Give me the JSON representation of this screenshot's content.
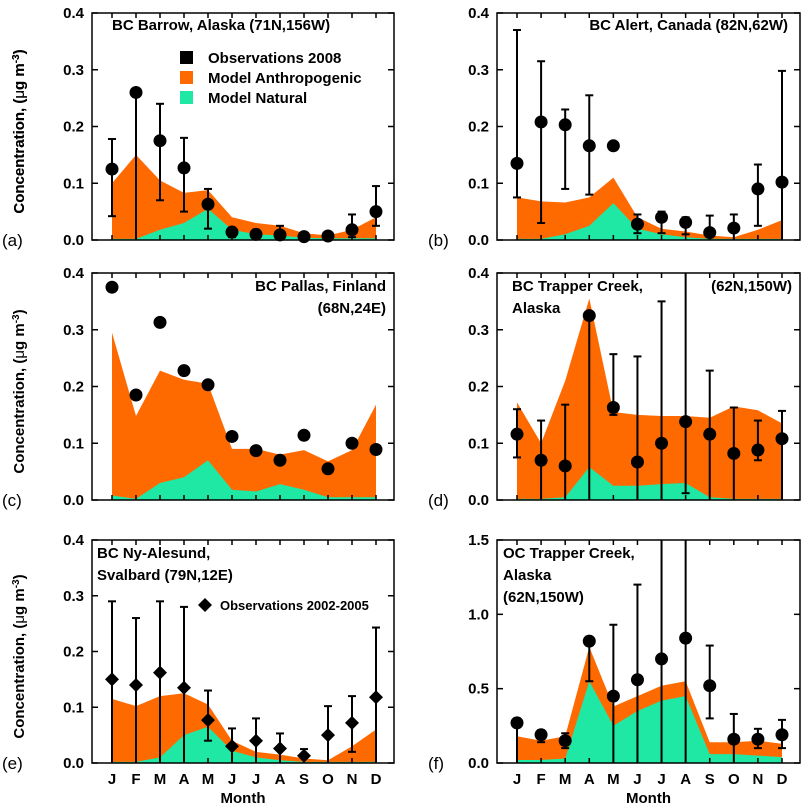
{
  "figure": {
    "ylabel_prefix": "Concentration, (",
    "ylabel_mu": "μ",
    "ylabel_unit": "g m",
    "ylabel_exp": "-3",
    "ylabel_close": ")",
    "xlabel": "Month",
    "legend_obs": "Observations 2008",
    "legend_anthro": "Model Anthropogenic",
    "legend_natural": "Model Natural",
    "legend_obs_multi": "Observations 2002-2005"
  },
  "colors": {
    "anthropogenic": "#ff6a00",
    "natural": "#1ee8a4",
    "observations": "#000000",
    "axes": "#000000"
  },
  "chart_data": [
    {
      "type": "area",
      "panel": "(a)",
      "title_lines": [
        "BC Barrow, Alaska (71N,156W)"
      ],
      "categories": [
        "J",
        "F",
        "M",
        "A",
        "M",
        "J",
        "J",
        "A",
        "S",
        "O",
        "N",
        "D"
      ],
      "ylim": [
        0,
        0.4
      ],
      "yticks": [
        "0.0",
        "0.1",
        "0.2",
        "0.3",
        "0.4"
      ],
      "series": [
        {
          "name": "Model Anthropogenic",
          "values": [
            0.1,
            0.15,
            0.105,
            0.083,
            0.088,
            0.04,
            0.03,
            0.025,
            0.012,
            0.008,
            0.018,
            0.04
          ]
        },
        {
          "name": "Model Natural",
          "values": [
            0.002,
            0.002,
            0.018,
            0.03,
            0.055,
            0.018,
            0.01,
            0.008,
            0.004,
            0.003,
            0.003,
            0.003
          ]
        },
        {
          "name": "Observations 2008",
          "marker": "circle",
          "values": [
            0.125,
            0.26,
            0.175,
            0.127,
            0.063,
            0.014,
            0.01,
            0.009,
            0.006,
            0.007,
            0.018,
            0.05
          ],
          "err_low": [
            0.042,
            0.0,
            0.07,
            0.05,
            0.02,
            0.005,
            0.003,
            0.0,
            0.003,
            0.003,
            0.005,
            0.025
          ],
          "err_high": [
            0.178,
            0.255,
            0.24,
            0.18,
            0.09,
            0.02,
            0.018,
            0.025,
            0.012,
            0.012,
            0.045,
            0.095
          ]
        }
      ]
    },
    {
      "type": "area",
      "panel": "(b)",
      "title_lines": [
        "BC Alert, Canada (82N,62W)"
      ],
      "categories": [
        "J",
        "F",
        "M",
        "A",
        "M",
        "J",
        "J",
        "A",
        "S",
        "O",
        "N",
        "D"
      ],
      "ylim": [
        0,
        0.4
      ],
      "yticks": [
        "0.0",
        "0.1",
        "0.2",
        "0.3",
        "0.4"
      ],
      "series": [
        {
          "name": "Model Anthropogenic",
          "values": [
            0.075,
            0.068,
            0.066,
            0.075,
            0.11,
            0.04,
            0.02,
            0.015,
            0.008,
            0.005,
            0.018,
            0.035
          ]
        },
        {
          "name": "Model Natural",
          "values": [
            0.002,
            0.002,
            0.01,
            0.025,
            0.065,
            0.02,
            0.01,
            0.005,
            0.002,
            0.002,
            0.002,
            0.002
          ]
        },
        {
          "name": "Observations 2008",
          "marker": "circle",
          "values": [
            0.135,
            0.208,
            0.203,
            0.166,
            0.166,
            0.028,
            0.04,
            0.031,
            0.013,
            0.021,
            0.09,
            0.102
          ],
          "err_low": [
            0.075,
            0.03,
            0.09,
            0.08,
            0.0,
            0.012,
            0.012,
            0.01,
            0.0,
            0.0,
            0.025,
            0.0
          ],
          "err_high": [
            0.37,
            0.315,
            0.23,
            0.255,
            0.0,
            0.045,
            0.05,
            0.04,
            0.043,
            0.045,
            0.133,
            0.298
          ]
        }
      ]
    },
    {
      "type": "area",
      "panel": "(c)",
      "title_lines": [
        "BC Pallas, Finland",
        "(68N,24E)"
      ],
      "categories": [
        "J",
        "F",
        "M",
        "A",
        "M",
        "J",
        "J",
        "A",
        "S",
        "O",
        "N",
        "D"
      ],
      "ylim": [
        0,
        0.4
      ],
      "yticks": [
        "0.0",
        "0.1",
        "0.2",
        "0.3",
        "0.4"
      ],
      "series": [
        {
          "name": "Model Anthropogenic",
          "values": [
            0.295,
            0.148,
            0.228,
            0.212,
            0.205,
            0.09,
            0.09,
            0.08,
            0.088,
            0.068,
            0.088,
            0.168
          ]
        },
        {
          "name": "Model Natural",
          "values": [
            0.008,
            0.002,
            0.03,
            0.04,
            0.07,
            0.018,
            0.015,
            0.028,
            0.018,
            0.005,
            0.005,
            0.005
          ]
        },
        {
          "name": "Observations 2008",
          "marker": "circle",
          "values": [
            0.375,
            0.185,
            0.313,
            0.228,
            0.203,
            0.112,
            0.087,
            0.07,
            0.114,
            0.055,
            0.1,
            0.089
          ]
        }
      ]
    },
    {
      "type": "area",
      "panel": "(d)",
      "title_lines": [
        "BC Trapper Creek,",
        "Alaska",
        "(62N,150W)"
      ],
      "categories": [
        "J",
        "F",
        "M",
        "A",
        "M",
        "J",
        "J",
        "A",
        "S",
        "O",
        "N",
        "D"
      ],
      "ylim": [
        0,
        0.4
      ],
      "yticks": [
        "0.0",
        "0.1",
        "0.2",
        "0.3",
        "0.4"
      ],
      "series": [
        {
          "name": "Model Anthropogenic",
          "values": [
            0.172,
            0.1,
            0.21,
            0.355,
            0.155,
            0.15,
            0.148,
            0.148,
            0.145,
            0.165,
            0.158,
            0.135
          ]
        },
        {
          "name": "Model Natural",
          "values": [
            0.002,
            0.002,
            0.005,
            0.058,
            0.025,
            0.025,
            0.028,
            0.03,
            0.005,
            0.002,
            0.002,
            0.002
          ]
        },
        {
          "name": "Observations 2008",
          "marker": "circle",
          "values": [
            0.116,
            0.07,
            0.06,
            0.325,
            0.163,
            0.067,
            0.1,
            0.138,
            0.116,
            0.082,
            0.088,
            0.108
          ],
          "err_low": [
            0.075,
            0.0,
            0.0,
            0.0,
            0.15,
            0.0,
            0.0,
            0.012,
            0.0,
            0.0,
            0.07,
            0.0
          ],
          "err_high": [
            0.16,
            0.14,
            0.168,
            0.33,
            0.257,
            0.253,
            0.35,
            0.43,
            0.228,
            0.163,
            0.14,
            0.157
          ]
        }
      ]
    },
    {
      "type": "area",
      "panel": "(e)",
      "title_lines": [
        "BC Ny-Alesund,",
        "Svalbard (79N,12E)"
      ],
      "categories": [
        "J",
        "F",
        "M",
        "A",
        "M",
        "J",
        "J",
        "A",
        "S",
        "O",
        "N",
        "D"
      ],
      "ylim": [
        0,
        0.4
      ],
      "yticks": [
        "0.0",
        "0.1",
        "0.2",
        "0.3",
        "0.4"
      ],
      "series": [
        {
          "name": "Model Anthropogenic",
          "values": [
            0.115,
            0.102,
            0.12,
            0.125,
            0.105,
            0.04,
            0.02,
            0.015,
            0.008,
            0.005,
            0.03,
            0.06
          ]
        },
        {
          "name": "Model Natural",
          "values": [
            0.002,
            0.002,
            0.01,
            0.05,
            0.065,
            0.022,
            0.01,
            0.005,
            0.002,
            0.002,
            0.002,
            0.002
          ]
        },
        {
          "name": "Observations 2002-2005",
          "marker": "diamond",
          "values": [
            0.15,
            0.14,
            0.162,
            0.135,
            0.077,
            0.03,
            0.04,
            0.026,
            0.013,
            0.05,
            0.072,
            0.118
          ],
          "err_low": [
            0.0,
            0.0,
            0.0,
            0.0,
            0.04,
            0.0,
            0.0,
            0.0,
            0.0,
            0.0,
            0.02,
            0.0
          ],
          "err_high": [
            0.29,
            0.26,
            0.29,
            0.28,
            0.13,
            0.062,
            0.08,
            0.053,
            0.025,
            0.102,
            0.12,
            0.243
          ]
        }
      ]
    },
    {
      "type": "area",
      "panel": "(f)",
      "title_lines": [
        "OC Trapper Creek,",
        "Alaska",
        "(62N,150W)"
      ],
      "categories": [
        "J",
        "F",
        "M",
        "A",
        "M",
        "J",
        "J",
        "A",
        "S",
        "O",
        "N",
        "D"
      ],
      "ylim": [
        0,
        1.5
      ],
      "yticks": [
        "0.0",
        "0.5",
        "1.0",
        "1.5"
      ],
      "series": [
        {
          "name": "Model Anthropogenic",
          "values": [
            0.18,
            0.15,
            0.18,
            0.78,
            0.38,
            0.45,
            0.52,
            0.55,
            0.14,
            0.14,
            0.15,
            0.13
          ]
        },
        {
          "name": "Model Natural",
          "values": [
            0.02,
            0.02,
            0.03,
            0.55,
            0.25,
            0.35,
            0.42,
            0.45,
            0.06,
            0.06,
            0.05,
            0.04
          ]
        },
        {
          "name": "Observations 2008",
          "marker": "circle",
          "values": [
            0.27,
            0.19,
            0.15,
            0.82,
            0.45,
            0.56,
            0.7,
            0.84,
            0.52,
            0.16,
            0.16,
            0.19
          ],
          "err_low": [
            0.0,
            0.14,
            0.1,
            0.55,
            0.0,
            0.0,
            0.0,
            0.0,
            0.3,
            0.0,
            0.1,
            0.1
          ],
          "err_high": [
            0.3,
            0.22,
            0.2,
            0.83,
            0.93,
            1.2,
            1.52,
            1.52,
            0.79,
            0.33,
            0.23,
            0.29
          ]
        }
      ]
    }
  ]
}
